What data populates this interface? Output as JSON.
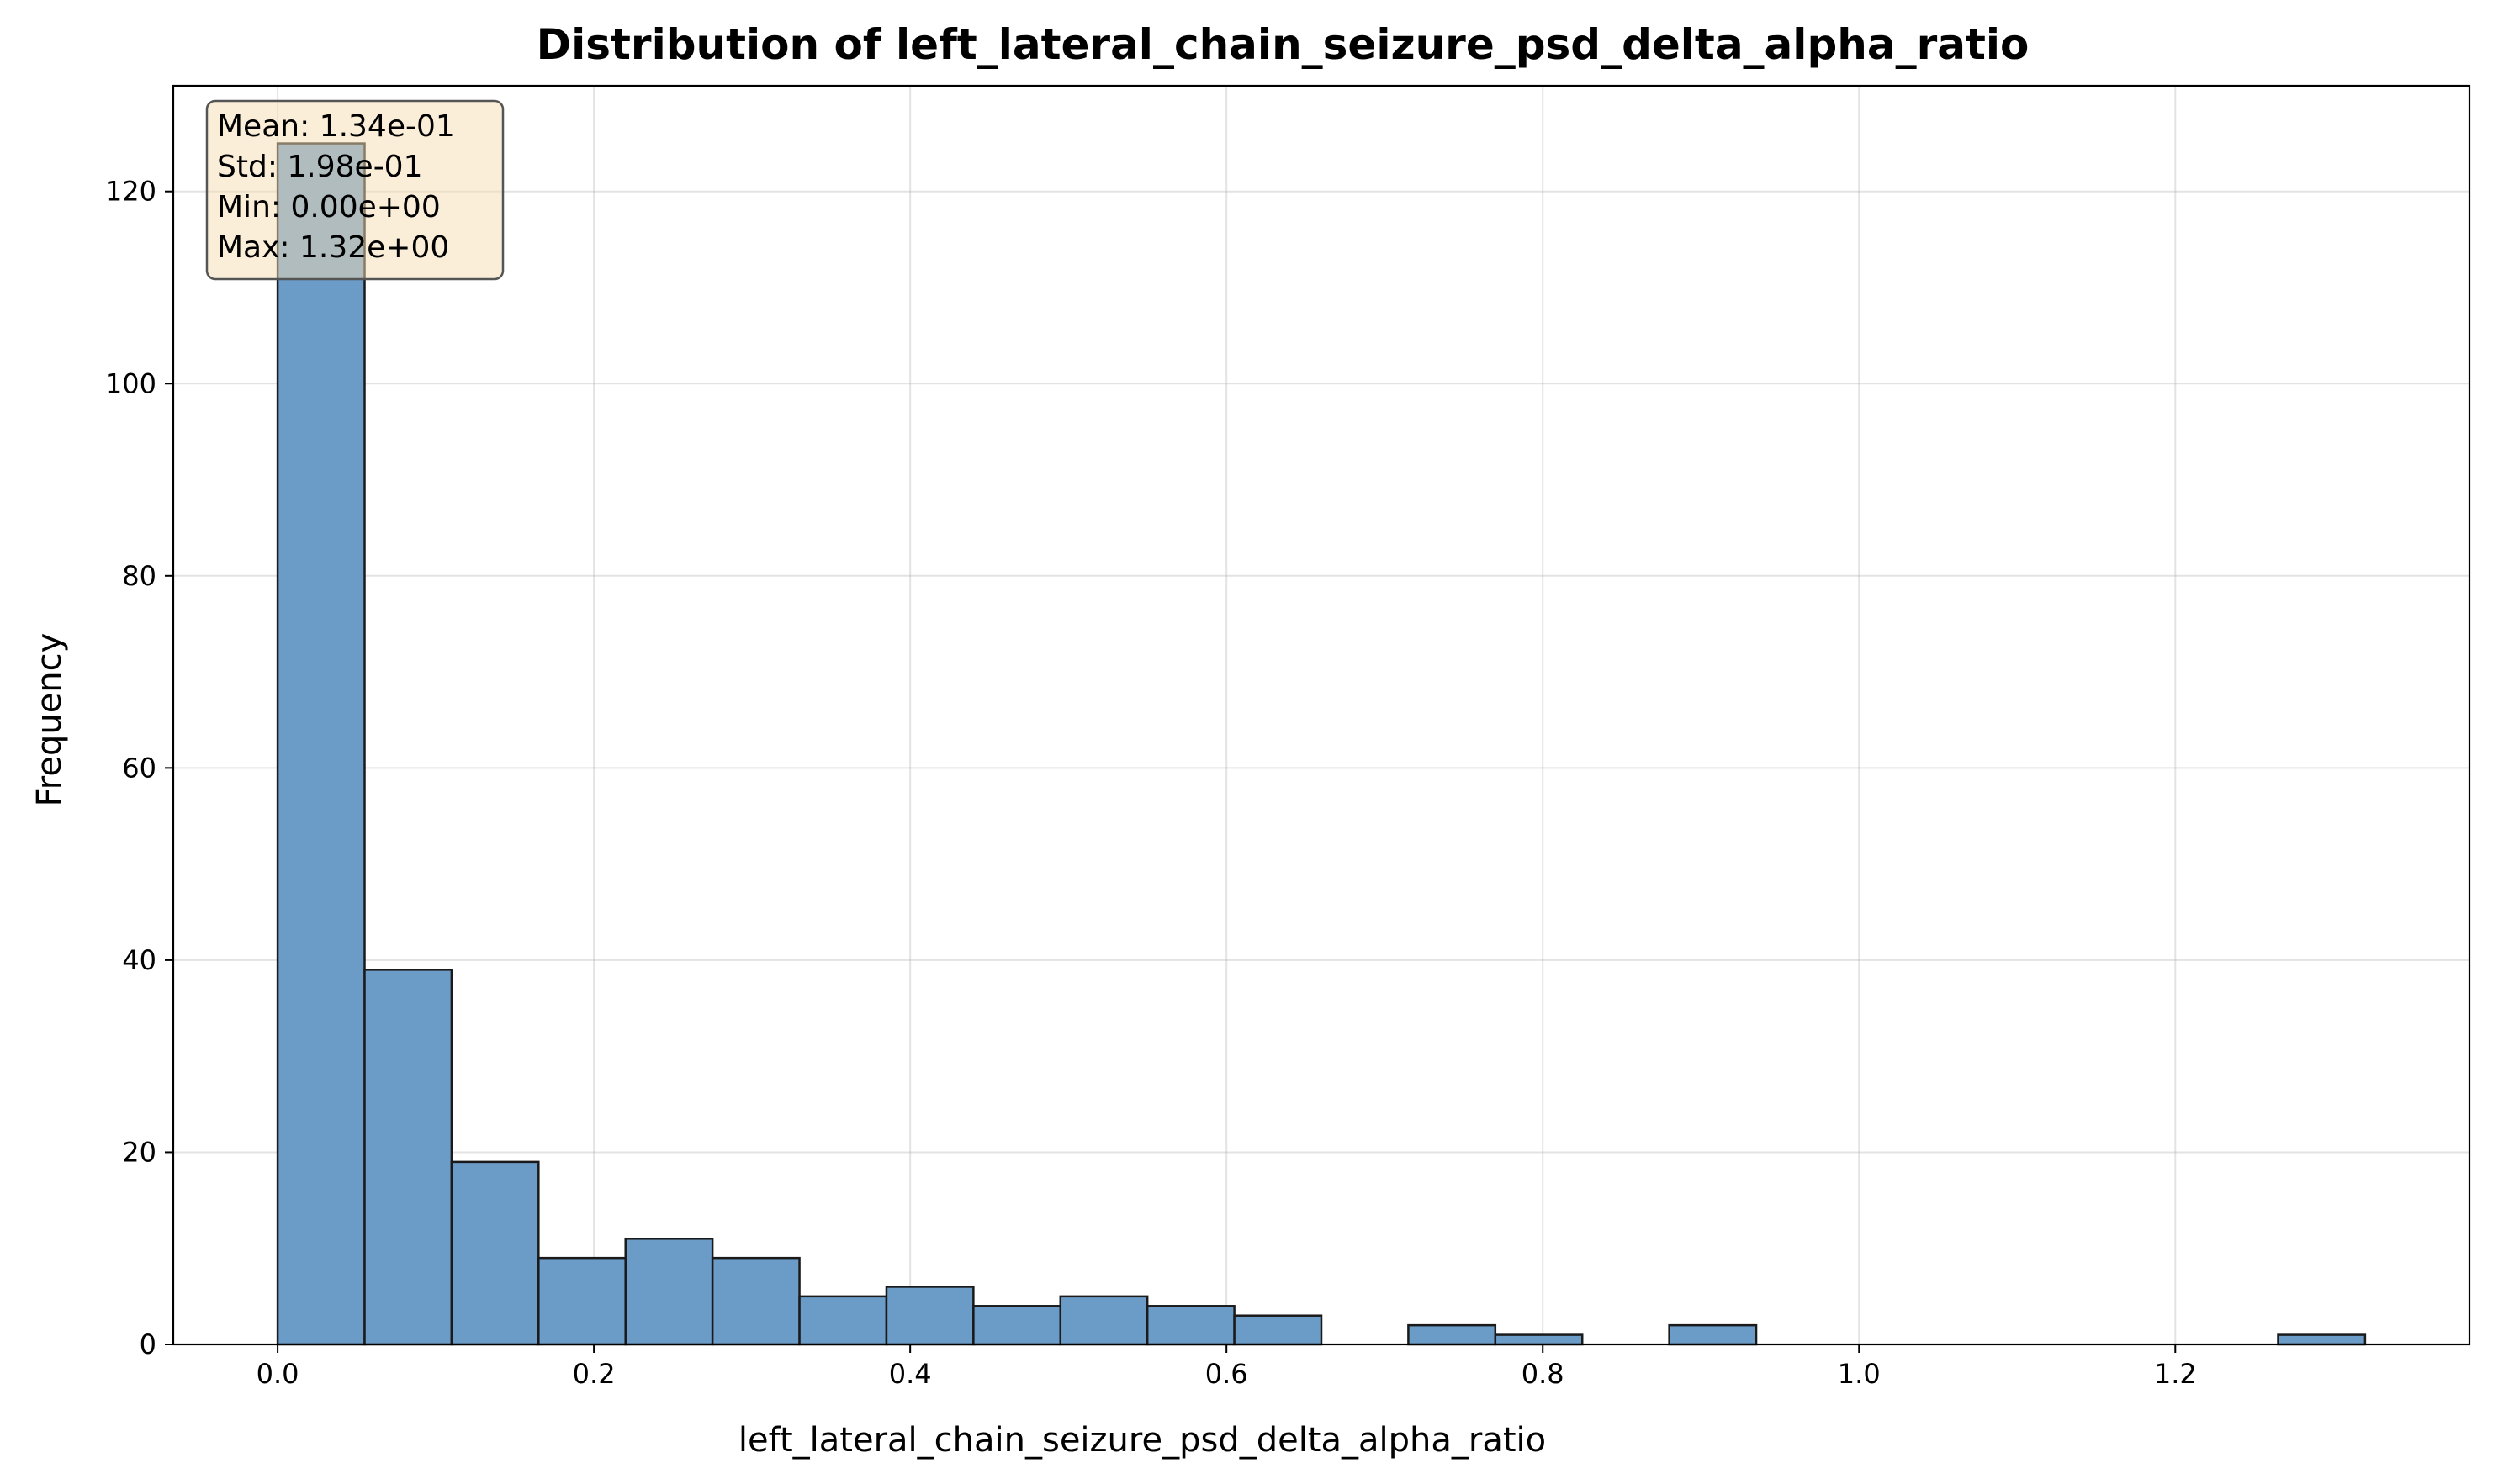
{
  "chart_data": {
    "type": "bar",
    "title": "Distribution of left_lateral_chain_seizure_psd_delta_alpha_ratio",
    "xlabel": "left_lateral_chain_seizure_psd_delta_alpha_ratio",
    "ylabel": "Frequency",
    "xlim": [
      -0.066,
      1.386
    ],
    "ylim": [
      0,
      131
    ],
    "grid": true,
    "x_ticks": [
      "0.0",
      "0.2",
      "0.4",
      "0.6",
      "0.8",
      "1.0",
      "1.2"
    ],
    "y_ticks": [
      "0",
      "20",
      "40",
      "60",
      "80",
      "100",
      "120"
    ],
    "bin_start": 0.0,
    "bin_width": 0.055,
    "bar_color": "#6b9bc7",
    "edge_color": "#1a1a1a",
    "values": [
      125,
      39,
      19,
      9,
      11,
      9,
      5,
      6,
      4,
      5,
      4,
      3,
      0,
      2,
      1,
      0,
      2,
      0,
      0,
      0,
      0,
      0,
      0,
      1
    ],
    "stats_box": {
      "lines": [
        "Mean: 1.34e-01",
        "Std: 1.98e-01",
        "Min: 0.00e+00",
        "Max: 1.32e+00"
      ],
      "background": "#f5deb3"
    }
  }
}
